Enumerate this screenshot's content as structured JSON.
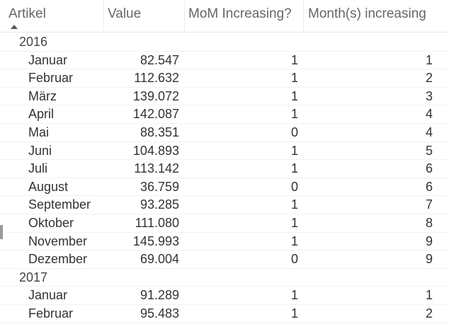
{
  "columns": {
    "artikel": "Artikel",
    "value": "Value",
    "mom": "MoM Increasing?",
    "months": "Month(s) increasing"
  },
  "groups": [
    {
      "year": "2016",
      "rows": [
        {
          "month": "Januar",
          "value": "82.547",
          "mom": "1",
          "months": "1"
        },
        {
          "month": "Februar",
          "value": "112.632",
          "mom": "1",
          "months": "2"
        },
        {
          "month": "März",
          "value": "139.072",
          "mom": "1",
          "months": "3"
        },
        {
          "month": "April",
          "value": "142.087",
          "mom": "1",
          "months": "4"
        },
        {
          "month": "Mai",
          "value": "88.351",
          "mom": "0",
          "months": "4"
        },
        {
          "month": "Juni",
          "value": "104.893",
          "mom": "1",
          "months": "5"
        },
        {
          "month": "Juli",
          "value": "113.142",
          "mom": "1",
          "months": "6"
        },
        {
          "month": "August",
          "value": "36.759",
          "mom": "0",
          "months": "6"
        },
        {
          "month": "September",
          "value": "93.285",
          "mom": "1",
          "months": "7"
        },
        {
          "month": "Oktober",
          "value": "111.080",
          "mom": "1",
          "months": "8"
        },
        {
          "month": "November",
          "value": "145.993",
          "mom": "1",
          "months": "9"
        },
        {
          "month": "Dezember",
          "value": "69.004",
          "mom": "0",
          "months": "9"
        }
      ]
    },
    {
      "year": "2017",
      "rows": [
        {
          "month": "Januar",
          "value": "91.289",
          "mom": "1",
          "months": "1"
        },
        {
          "month": "Februar",
          "value": "95.483",
          "mom": "1",
          "months": "2"
        }
      ]
    }
  ],
  "icons": {
    "sort": "sort-ascending-icon"
  }
}
